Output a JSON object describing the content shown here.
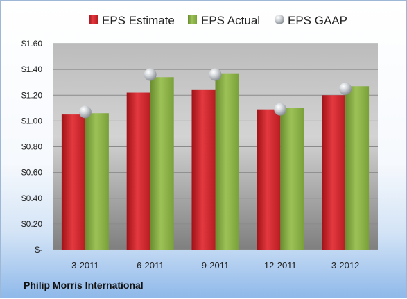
{
  "company": "Philip Morris International",
  "chart_data": {
    "type": "bar",
    "categories": [
      "3-2011",
      "6-2011",
      "9-2011",
      "12-2011",
      "3-2012"
    ],
    "series": [
      {
        "name": "EPS Estimate",
        "kind": "bar",
        "color": "#d7262d",
        "values": [
          1.05,
          1.22,
          1.24,
          1.09,
          1.2
        ]
      },
      {
        "name": "EPS Actual",
        "kind": "bar",
        "color": "#8db346",
        "values": [
          1.06,
          1.34,
          1.37,
          1.1,
          1.27
        ]
      },
      {
        "name": "EPS GAAP",
        "kind": "marker",
        "color": "#b9bec4",
        "values": [
          1.07,
          1.36,
          1.36,
          1.09,
          1.25
        ]
      }
    ],
    "ylim": [
      0,
      1.6
    ],
    "yticks": [
      0,
      0.2,
      0.4,
      0.6,
      0.8,
      1.0,
      1.2,
      1.4,
      1.6
    ],
    "ytick_labels": [
      "$-",
      "$0.20",
      "$0.40",
      "$0.60",
      "$0.80",
      "$1.00",
      "$1.20",
      "$1.40",
      "$1.60"
    ],
    "legend_position": "top",
    "grid": true
  }
}
